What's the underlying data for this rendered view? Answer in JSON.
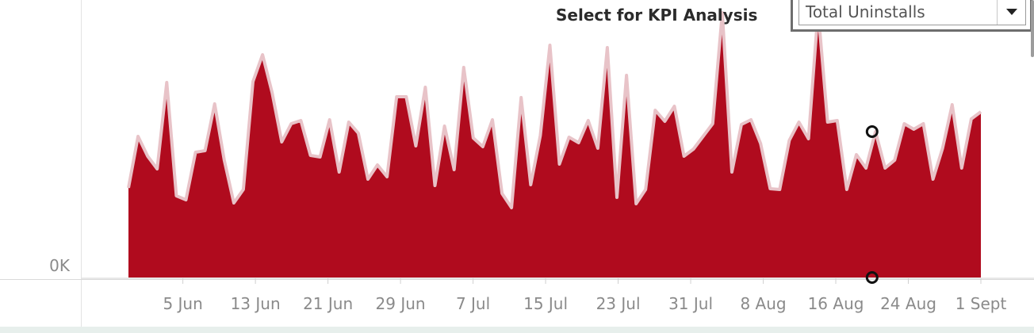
{
  "kpi": {
    "label": "Select for KPI Analysis",
    "selected": "Total Uninstalls",
    "dropdown_icon": "chevron-down-icon"
  },
  "chart_data": {
    "type": "area",
    "title": "",
    "xlabel": "",
    "ylabel": "",
    "y_tick_labels": [
      "0K"
    ],
    "x_tick_labels": [
      "5 Jun",
      "13 Jun",
      "21 Jun",
      "29 Jun",
      "7 Jul",
      "15 Jul",
      "23 Jul",
      "31 Jul",
      "8 Aug",
      "16 Aug",
      "24 Aug",
      "1 Sept"
    ],
    "x_start": "2023-05-30",
    "x_end": "2023-09-01",
    "ylim": [
      0,
      340
    ],
    "grid": false,
    "colors": {
      "fill": "#b00b1e",
      "line": "#e8c3c8",
      "marker": "#111111"
    },
    "highlighted_points": [
      {
        "x": "2023-08-20",
        "series": "Total Uninstalls"
      },
      {
        "x": "2023-08-20",
        "series": "baseline"
      }
    ],
    "series": [
      {
        "name": "Total Uninstalls",
        "values": [
          113,
          178,
          153,
          137,
          246,
          103,
          98,
          158,
          160,
          219,
          148,
          94,
          111,
          247,
          281,
          233,
          171,
          194,
          198,
          154,
          152,
          199,
          133,
          196,
          182,
          124,
          142,
          127,
          228,
          228,
          166,
          240,
          116,
          191,
          136,
          265,
          176,
          165,
          199,
          106,
          88,
          227,
          117,
          179,
          293,
          143,
          177,
          170,
          198,
          163,
          290,
          101,
          255,
          93,
          111,
          211,
          197,
          216,
          153,
          162,
          178,
          194,
          334,
          133,
          193,
          199,
          169,
          112,
          111,
          173,
          196,
          175,
          337,
          196,
          198,
          111,
          155,
          138,
          184,
          138,
          148,
          194,
          187,
          194,
          124,
          163,
          218,
          138,
          200,
          209
        ]
      }
    ]
  }
}
